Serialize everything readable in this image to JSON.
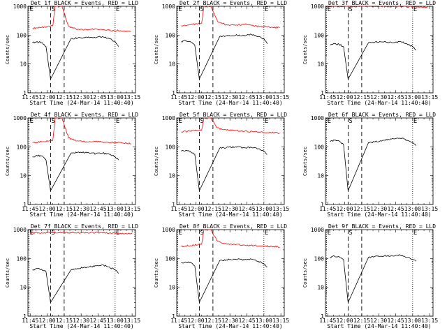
{
  "colors": {
    "events": "#000000",
    "lld": "#ff0000",
    "axes": "#000000",
    "background": "#ffffff"
  },
  "common": {
    "xlabel": "Start Time (24-Mar-14 11:40:40)",
    "ylabel": "Counts/sec",
    "x_ticks": [
      "11:45",
      "12:00",
      "12:15",
      "12:30",
      "12:45",
      "13:00",
      "13:15"
    ],
    "y_ticks": [
      "1",
      "10",
      "100",
      "1000"
    ],
    "marker_labels": {
      "E": "E",
      "S": "S"
    }
  },
  "chart_data": [
    {
      "type": "line",
      "title": "Det 1f BLACK = Events, RED = LLD",
      "xlabel": "Start Time (24-Mar-14 11:40:40)",
      "ylabel": "Counts/sec",
      "y_scale": "log",
      "ylim": [
        1,
        1000
      ],
      "x_ticks": [
        "11:45",
        "12:00",
        "12:15",
        "12:30",
        "12:45",
        "13:00",
        "13:15"
      ],
      "y_ticks": [
        "1",
        "10",
        "100",
        "1000"
      ],
      "markers": {
        "E": [
          "11:44",
          "13:00"
        ],
        "S": [
          "12:03",
          "12:15"
        ]
      },
      "series": [
        {
          "color": "#ff0000",
          "x": [
            "11:47",
            "11:55",
            "12:02",
            "12:05",
            "12:07",
            "12:13",
            "12:19",
            "12:27",
            "12:35",
            "12:43",
            "12:51",
            "12:59",
            "13:07",
            "13:14"
          ],
          "y": [
            170,
            185,
            200,
            210,
            1000,
            1000,
            200,
            160,
            155,
            165,
            150,
            145,
            140,
            135
          ]
        },
        {
          "color": "#000000",
          "x": [
            "11:47",
            "11:51",
            "11:55",
            "11:59",
            "12:03",
            "12:21",
            "12:27",
            "12:35",
            "12:43",
            "12:49",
            "12:55",
            "13:00",
            "13:03"
          ],
          "y": [
            55,
            60,
            55,
            40,
            3,
            75,
            80,
            85,
            80,
            90,
            75,
            60,
            40
          ]
        }
      ]
    },
    {
      "type": "line",
      "title": "Det 2f BLACK = Events, RED = LLD",
      "xlabel": "Start Time (24-Mar-14 11:40:40)",
      "ylabel": "Counts/sec",
      "y_scale": "log",
      "ylim": [
        1,
        1000
      ],
      "x_ticks": [
        "11:45",
        "12:00",
        "12:15",
        "12:30",
        "12:45",
        "13:00",
        "13:15"
      ],
      "y_ticks": [
        "1",
        "10",
        "100",
        "1000"
      ],
      "markers": {
        "E": [
          "11:44",
          "13:00"
        ],
        "S": [
          "12:03",
          "12:15"
        ]
      },
      "series": [
        {
          "color": "#ff0000",
          "x": [
            "11:47",
            "11:55",
            "12:02",
            "12:05",
            "12:07",
            "12:13",
            "12:19",
            "12:27",
            "12:35",
            "12:43",
            "12:51",
            "12:59",
            "13:07",
            "13:14"
          ],
          "y": [
            210,
            230,
            250,
            260,
            1000,
            1000,
            300,
            230,
            220,
            240,
            210,
            200,
            190,
            180
          ]
        },
        {
          "color": "#000000",
          "x": [
            "11:47",
            "11:51",
            "11:55",
            "11:59",
            "12:03",
            "12:21",
            "12:27",
            "12:35",
            "12:43",
            "12:49",
            "12:55",
            "13:00",
            "13:03"
          ],
          "y": [
            60,
            65,
            60,
            45,
            3,
            90,
            95,
            100,
            95,
            105,
            90,
            75,
            50
          ]
        }
      ]
    },
    {
      "type": "line",
      "title": "Det 3f BLACK = Events, RED = LLD",
      "xlabel": "Start Time (24-Mar-14 11:40:40)",
      "ylabel": "Counts/sec",
      "y_scale": "log",
      "ylim": [
        1,
        1000
      ],
      "x_ticks": [
        "11:45",
        "12:00",
        "12:15",
        "12:30",
        "12:45",
        "13:00",
        "13:15"
      ],
      "y_ticks": [
        "1",
        "10",
        "100",
        "1000"
      ],
      "markers": {
        "E": [
          "11:44",
          "13:00"
        ],
        "S": [
          "12:03",
          "12:15"
        ]
      },
      "series": [
        {
          "color": "#ff0000",
          "x": [
            "11:45",
            "12:00",
            "12:03",
            "12:21",
            "12:45",
            "13:15"
          ],
          "y": [
            1000,
            1000,
            1000,
            1000,
            980,
            950
          ]
        },
        {
          "color": "#000000",
          "x": [
            "11:47",
            "11:51",
            "11:55",
            "11:59",
            "12:03",
            "12:21",
            "12:27",
            "12:35",
            "12:43",
            "12:49",
            "12:55",
            "13:00",
            "13:03"
          ],
          "y": [
            45,
            50,
            48,
            40,
            3,
            55,
            58,
            60,
            55,
            60,
            50,
            40,
            30
          ]
        }
      ]
    },
    {
      "type": "line",
      "title": "Det 4f BLACK = Events, RED = LLD",
      "xlabel": "Start Time (24-Mar-14 11:40:40)",
      "ylabel": "Counts/sec",
      "y_scale": "log",
      "ylim": [
        1,
        1000
      ],
      "x_ticks": [
        "11:45",
        "12:00",
        "12:15",
        "12:30",
        "12:45",
        "13:00",
        "13:15"
      ],
      "y_ticks": [
        "1",
        "10",
        "100",
        "1000"
      ],
      "markers": {
        "E": [
          "11:44",
          "13:00"
        ],
        "S": [
          "12:03",
          "12:15"
        ]
      },
      "series": [
        {
          "color": "#ff0000",
          "x": [
            "11:47",
            "11:55",
            "12:02",
            "12:05",
            "12:07",
            "12:13",
            "12:19",
            "12:27",
            "12:35",
            "12:43",
            "12:51",
            "12:59",
            "13:07",
            "13:14"
          ],
          "y": [
            140,
            150,
            160,
            170,
            1000,
            1000,
            200,
            160,
            150,
            155,
            145,
            140,
            135,
            130
          ]
        },
        {
          "color": "#000000",
          "x": [
            "11:47",
            "11:51",
            "11:55",
            "11:59",
            "12:03",
            "12:21",
            "12:27",
            "12:35",
            "12:43",
            "12:49",
            "12:55",
            "13:00",
            "13:03"
          ],
          "y": [
            45,
            50,
            48,
            35,
            3,
            60,
            65,
            62,
            58,
            60,
            55,
            45,
            35
          ]
        }
      ]
    },
    {
      "type": "line",
      "title": "Det 5f BLACK = Events, RED = LLD",
      "xlabel": "Start Time (24-Mar-14 11:40:40)",
      "ylabel": "Counts/sec",
      "y_scale": "log",
      "ylim": [
        1,
        1000
      ],
      "x_ticks": [
        "11:45",
        "12:00",
        "12:15",
        "12:30",
        "12:45",
        "13:00",
        "13:15"
      ],
      "y_ticks": [
        "1",
        "10",
        "100",
        "1000"
      ],
      "markers": {
        "E": [
          "11:44",
          "13:00"
        ],
        "S": [
          "12:03",
          "12:15"
        ]
      },
      "series": [
        {
          "color": "#ff0000",
          "x": [
            "11:47",
            "11:55",
            "12:02",
            "12:05",
            "12:07",
            "12:13",
            "12:19",
            "12:27",
            "12:35",
            "12:43",
            "12:51",
            "12:59",
            "13:07",
            "13:14"
          ],
          "y": [
            330,
            350,
            370,
            380,
            1000,
            1000,
            450,
            380,
            360,
            350,
            330,
            320,
            310,
            300
          ]
        },
        {
          "color": "#000000",
          "x": [
            "11:47",
            "11:51",
            "11:55",
            "11:59",
            "12:03",
            "12:21",
            "12:27",
            "12:35",
            "12:43",
            "12:49",
            "12:55",
            "13:00",
            "13:03"
          ],
          "y": [
            70,
            75,
            70,
            55,
            3,
            90,
            95,
            100,
            92,
            95,
            85,
            70,
            55
          ]
        }
      ]
    },
    {
      "type": "line",
      "title": "Det 6f BLACK = Events, RED = LLD",
      "xlabel": "Start Time (24-Mar-14 11:40:40)",
      "ylabel": "Counts/sec",
      "y_scale": "log",
      "ylim": [
        1,
        1000
      ],
      "x_ticks": [
        "11:45",
        "12:00",
        "12:15",
        "12:30",
        "12:45",
        "13:00",
        "13:15"
      ],
      "y_ticks": [
        "1",
        "10",
        "100",
        "1000"
      ],
      "markers": {
        "E": [
          "11:44",
          "13:00"
        ],
        "S": [
          "12:03",
          "12:15"
        ]
      },
      "series": [
        {
          "color": "#000000",
          "x": [
            "11:47",
            "11:51",
            "11:55",
            "11:59",
            "12:03",
            "12:21",
            "12:27",
            "12:35",
            "12:43",
            "12:49",
            "12:55",
            "13:00",
            "13:03"
          ],
          "y": [
            150,
            170,
            160,
            120,
            3,
            140,
            150,
            170,
            190,
            200,
            170,
            140,
            110
          ]
        }
      ]
    },
    {
      "type": "line",
      "title": "Det 7f BLACK = Events, RED = LLD",
      "xlabel": "Start Time (24-Mar-14 11:40:40)",
      "ylabel": "Counts/sec",
      "y_scale": "log",
      "ylim": [
        1,
        1000
      ],
      "x_ticks": [
        "11:45",
        "12:00",
        "12:15",
        "12:30",
        "12:45",
        "13:00",
        "13:15"
      ],
      "y_ticks": [
        "1",
        "10",
        "100",
        "1000"
      ],
      "markers": {
        "E": [
          "11:44",
          "13:00"
        ],
        "S": [
          "12:03",
          "12:15"
        ]
      },
      "series": [
        {
          "color": "#ff0000",
          "x": [
            "11:45",
            "11:55",
            "12:05",
            "12:15",
            "12:25",
            "12:35",
            "12:45",
            "12:55",
            "13:05",
            "13:15"
          ],
          "y": [
            750,
            780,
            800,
            790,
            780,
            770,
            790,
            760,
            750,
            740
          ]
        },
        {
          "color": "#000000",
          "x": [
            "11:47",
            "11:51",
            "11:55",
            "11:59",
            "12:03",
            "12:21",
            "12:27",
            "12:35",
            "12:43",
            "12:49",
            "12:55",
            "13:00",
            "13:03"
          ],
          "y": [
            40,
            45,
            42,
            35,
            3,
            40,
            45,
            50,
            55,
            60,
            50,
            40,
            30
          ]
        }
      ]
    },
    {
      "type": "line",
      "title": "Det 8f BLACK = Events, RED = LLD",
      "xlabel": "Start Time (24-Mar-14 11:40:40)",
      "ylabel": "Counts/sec",
      "y_scale": "log",
      "ylim": [
        1,
        1000
      ],
      "x_ticks": [
        "11:45",
        "12:00",
        "12:15",
        "12:30",
        "12:45",
        "13:00",
        "13:15"
      ],
      "y_ticks": [
        "1",
        "10",
        "100",
        "1000"
      ],
      "markers": {
        "E": [
          "11:44",
          "13:00"
        ],
        "S": [
          "12:03",
          "12:15"
        ]
      },
      "series": [
        {
          "color": "#ff0000",
          "x": [
            "11:47",
            "11:55",
            "12:02",
            "12:05",
            "12:07",
            "12:13",
            "12:19",
            "12:27",
            "12:35",
            "12:43",
            "12:51",
            "12:59",
            "13:07",
            "13:14"
          ],
          "y": [
            260,
            280,
            300,
            310,
            1000,
            1000,
            400,
            320,
            300,
            290,
            280,
            270,
            260,
            250
          ]
        },
        {
          "color": "#000000",
          "x": [
            "11:47",
            "11:51",
            "11:55",
            "11:59",
            "12:03",
            "12:21",
            "12:27",
            "12:35",
            "12:43",
            "12:49",
            "12:55",
            "13:00",
            "13:03"
          ],
          "y": [
            70,
            75,
            72,
            55,
            3,
            85,
            90,
            95,
            90,
            95,
            80,
            65,
            50
          ]
        }
      ]
    },
    {
      "type": "line",
      "title": "Det 9f BLACK = Events, RED = LLD",
      "xlabel": "Start Time (24-Mar-14 11:40:40)",
      "ylabel": "Counts/sec",
      "y_scale": "log",
      "ylim": [
        1,
        1000
      ],
      "x_ticks": [
        "11:45",
        "12:00",
        "12:15",
        "12:30",
        "12:45",
        "13:00",
        "13:15"
      ],
      "y_ticks": [
        "1",
        "10",
        "100",
        "1000"
      ],
      "markers": {
        "E": [
          "11:44",
          "13:00"
        ],
        "S": [
          "12:03",
          "12:15"
        ]
      },
      "series": [
        {
          "color": "#000000",
          "x": [
            "11:47",
            "11:51",
            "11:55",
            "11:59",
            "12:03",
            "12:21",
            "12:27",
            "12:35",
            "12:43",
            "12:49",
            "12:55",
            "13:00",
            "13:03"
          ],
          "y": [
            110,
            120,
            115,
            90,
            3,
            110,
            120,
            125,
            120,
            130,
            110,
            95,
            80
          ]
        }
      ]
    }
  ]
}
